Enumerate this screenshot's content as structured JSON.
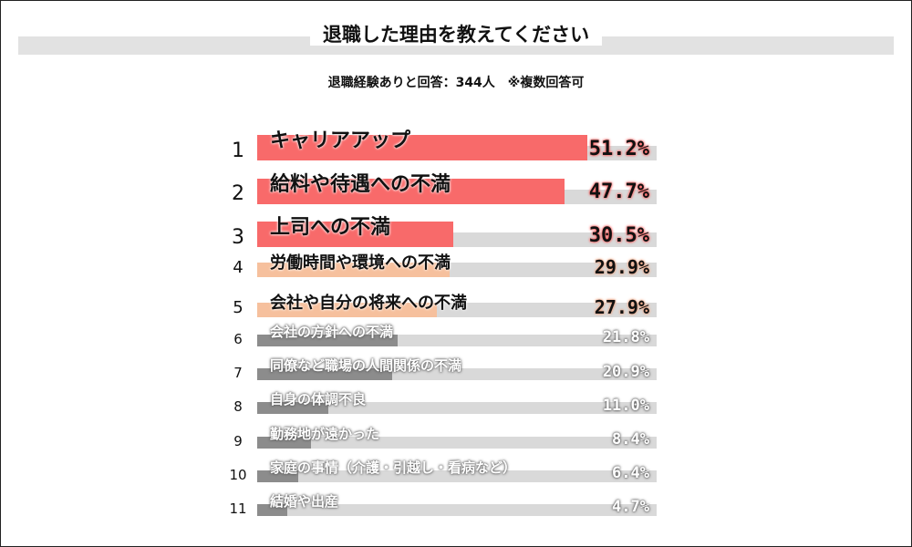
{
  "chart_data": {
    "type": "bar",
    "orientation": "horizontal",
    "title": "退職した理由を教えてください",
    "subtitle": "退職経験ありと回答：344人　※複数回答可",
    "xlim": [
      0,
      62
    ],
    "categories": [
      "キャリアアップ",
      "給料や待遇への不満",
      "上司への不満",
      "労働時間や環境への不満",
      "会社や自分の将来への不満",
      "会社の方針への不満",
      "同僚など職場の人間関係の不満",
      "自身の体調不良",
      "勤務地が遠かった",
      "家庭の事情（介護・引越し・看病など）",
      "結婚や出産"
    ],
    "ranks": [
      "1",
      "2",
      "3",
      "4",
      "5",
      "6",
      "7",
      "8",
      "9",
      "10",
      "11"
    ],
    "values": [
      51.2,
      47.7,
      30.5,
      29.9,
      27.9,
      21.8,
      20.9,
      11.0,
      8.4,
      6.4,
      4.7
    ],
    "value_labels": [
      "51.2%",
      "47.7%",
      "30.5%",
      "29.9%",
      "27.9%",
      "21.8%",
      "20.9%",
      "11.0%",
      "8.4%",
      "6.4%",
      "4.7%"
    ],
    "colors": {
      "top3": "#f86a6a",
      "mid": "#f6c09d",
      "rest": "#8c8c8c",
      "track": "#d9d9d9"
    }
  }
}
